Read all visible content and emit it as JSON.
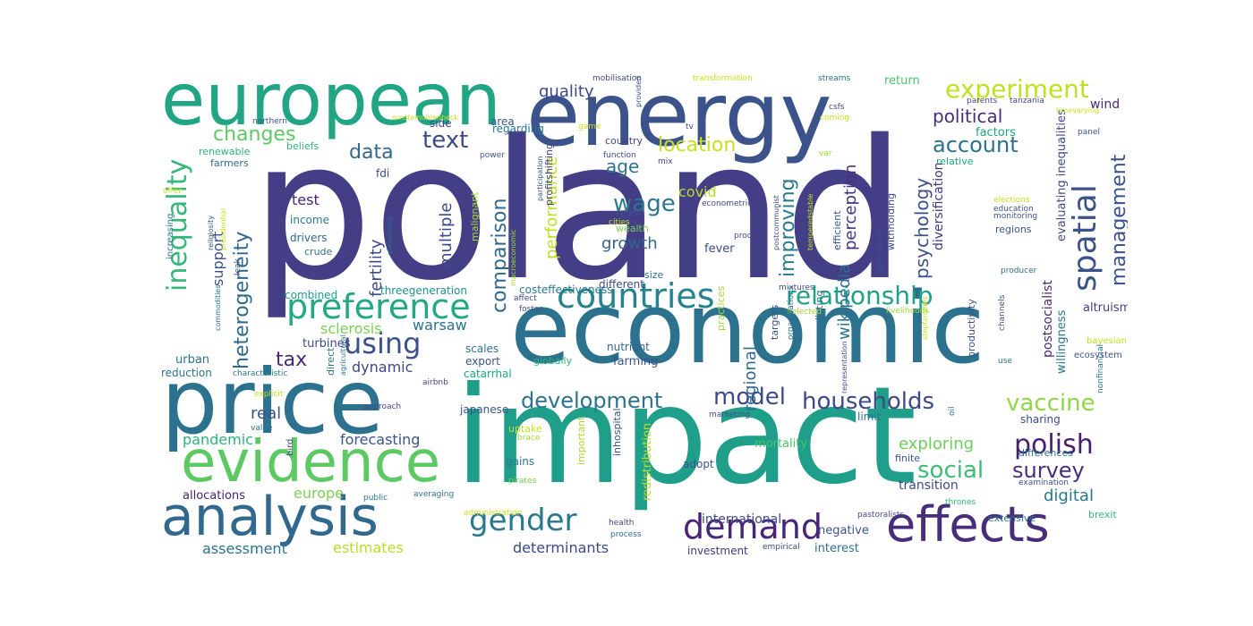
{
  "word_cloud": {
    "words": [
      {
        "text": "poland",
        "color": "#433e85"
      },
      {
        "text": "impact",
        "color": "#1f9e89"
      },
      {
        "text": "economic",
        "color": "#2c728e"
      },
      {
        "text": "price",
        "color": "#2c728e"
      },
      {
        "text": "energy",
        "color": "#3b528b"
      },
      {
        "text": "european",
        "color": "#21a585"
      },
      {
        "text": "evidence",
        "color": "#5ec962"
      },
      {
        "text": "analysis",
        "color": "#31688e"
      },
      {
        "text": "effects",
        "color": "#472d7b"
      },
      {
        "text": "demand",
        "color": "#482677"
      },
      {
        "text": "countries",
        "color": "#26828e"
      },
      {
        "text": "preference",
        "color": "#22a884"
      },
      {
        "text": "inequality",
        "color": "#35b779"
      },
      {
        "text": "spatial",
        "color": "#3b528b"
      },
      {
        "text": "gender",
        "color": "#2a788e"
      },
      {
        "text": "experiment",
        "color": "#c2df23"
      },
      {
        "text": "using",
        "color": "#3b528b"
      },
      {
        "text": "polish",
        "color": "#481f70"
      },
      {
        "text": "relationship",
        "color": "#1fa187"
      },
      {
        "text": "households",
        "color": "#3e4989"
      },
      {
        "text": "vaccine",
        "color": "#8fd744"
      },
      {
        "text": "development",
        "color": "#2c728e"
      },
      {
        "text": "model",
        "color": "#3e4989"
      },
      {
        "text": "social",
        "color": "#3fbc73"
      },
      {
        "text": "survey",
        "color": "#472d7b"
      },
      {
        "text": "heterogeneity",
        "color": "#31688e"
      },
      {
        "text": "comparison",
        "color": "#31688e"
      },
      {
        "text": "management",
        "color": "#3b528b"
      },
      {
        "text": "text",
        "color": "#3e4989"
      },
      {
        "text": "account",
        "color": "#2c728e"
      },
      {
        "text": "location",
        "color": "#c8e020"
      },
      {
        "text": "wage",
        "color": "#2a788e"
      },
      {
        "text": "changes",
        "color": "#5ec962"
      },
      {
        "text": "improving",
        "color": "#2a788e"
      },
      {
        "text": "psychology",
        "color": "#3b528b"
      },
      {
        "text": "data",
        "color": "#31688e"
      },
      {
        "text": "tax",
        "color": "#482878"
      },
      {
        "text": "political",
        "color": "#472d7b"
      },
      {
        "text": "quality",
        "color": "#3e4989"
      },
      {
        "text": "age",
        "color": "#2c728e"
      },
      {
        "text": "performance",
        "color": "#bddf26"
      },
      {
        "text": "multiple",
        "color": "#3e4989"
      },
      {
        "text": "wikipedia",
        "color": "#2c728e"
      },
      {
        "text": "exploring",
        "color": "#6ccd5a"
      },
      {
        "text": "perception",
        "color": "#46337e"
      },
      {
        "text": "digital",
        "color": "#2a788e"
      },
      {
        "text": "forecasting",
        "color": "#3b528b"
      },
      {
        "text": "growth",
        "color": "#33638d"
      },
      {
        "text": "regional",
        "color": "#31688e"
      },
      {
        "text": "warsaw",
        "color": "#2c728e"
      },
      {
        "text": "sclerosis",
        "color": "#7ad151"
      },
      {
        "text": "fertility",
        "color": "#3e4989"
      },
      {
        "text": "pandemic",
        "color": "#2db27d"
      },
      {
        "text": "real",
        "color": "#3b528b"
      },
      {
        "text": "assessment",
        "color": "#2c728e"
      },
      {
        "text": "estimates",
        "color": "#b5de2b"
      },
      {
        "text": "determinants",
        "color": "#3e4989"
      },
      {
        "text": "test",
        "color": "#482677"
      },
      {
        "text": "covid",
        "color": "#b5de2b"
      },
      {
        "text": "dynamic",
        "color": "#3e4989"
      },
      {
        "text": "support",
        "color": "#3b528b"
      },
      {
        "text": "europe",
        "color": "#7ad151"
      },
      {
        "text": "transition",
        "color": "#3e4989"
      },
      {
        "text": "factors",
        "color": "#20a386"
      },
      {
        "text": "evaluating inequalities",
        "color": "#3e4989"
      },
      {
        "text": "diversification",
        "color": "#46337e"
      },
      {
        "text": "postsocialist",
        "color": "#482878"
      },
      {
        "text": "altruism",
        "color": "#433e85"
      },
      {
        "text": "willingness",
        "color": "#2a788e"
      },
      {
        "text": "redistribution",
        "color": "#b8de29"
      },
      {
        "text": "international",
        "color": "#3e4989"
      },
      {
        "text": "investment",
        "color": "#453781"
      },
      {
        "text": "interest",
        "color": "#2c728e"
      },
      {
        "text": "negative",
        "color": "#3b528b"
      },
      {
        "text": "mortality",
        "color": "#4ac16d"
      },
      {
        "text": "return",
        "color": "#4ac16d"
      },
      {
        "text": "wind",
        "color": "#482878"
      },
      {
        "text": "nutrient",
        "color": "#33638d"
      },
      {
        "text": "farming",
        "color": "#3b528b"
      },
      {
        "text": "fever",
        "color": "#3e4989"
      },
      {
        "text": "different",
        "color": "#3e4989"
      },
      {
        "text": "costeffectiveness",
        "color": "#2a788e"
      },
      {
        "text": "allocations",
        "color": "#481f70"
      },
      {
        "text": "urban",
        "color": "#2c728e"
      },
      {
        "text": "reduction",
        "color": "#2c728e"
      },
      {
        "text": "turbines",
        "color": "#3e4989"
      },
      {
        "text": "combined",
        "color": "#1f9e89"
      },
      {
        "text": "income",
        "color": "#2a788e"
      },
      {
        "text": "drivers",
        "color": "#31688e"
      },
      {
        "text": "threegeneration",
        "color": "#21918c"
      },
      {
        "text": "regarding",
        "color": "#2a788e"
      },
      {
        "text": "area",
        "color": "#3b528b"
      },
      {
        "text": "side",
        "color": "#3e4989"
      },
      {
        "text": "beliefs",
        "color": "#2db27d"
      },
      {
        "text": "farmers",
        "color": "#31688e"
      },
      {
        "text": "renewable",
        "color": "#2db27d"
      },
      {
        "text": "fdi",
        "color": "#3e4989"
      },
      {
        "text": "export",
        "color": "#3b528b"
      },
      {
        "text": "scales",
        "color": "#2c728e"
      },
      {
        "text": "catarrhal",
        "color": "#20a386"
      },
      {
        "text": "japanese",
        "color": "#3b528b"
      },
      {
        "text": "gains",
        "color": "#2a788e"
      },
      {
        "text": "adopt",
        "color": "#3b528b"
      },
      {
        "text": "sharing",
        "color": "#3e4989"
      },
      {
        "text": "limit",
        "color": "#2c728e"
      },
      {
        "text": "productivity",
        "color": "#3b528b"
      },
      {
        "text": "targets",
        "color": "#3b528b"
      },
      {
        "text": "predicting",
        "color": "#2c728e"
      },
      {
        "text": "practices",
        "color": "#a0da39"
      },
      {
        "text": "efficient",
        "color": "#3b528b"
      },
      {
        "text": "withholding",
        "color": "#3e4989"
      },
      {
        "text": "relative",
        "color": "#20a386"
      },
      {
        "text": "regions",
        "color": "#3b528b"
      },
      {
        "text": "profitshifting",
        "color": "#3e4989"
      },
      {
        "text": "malignant",
        "color": "#a8db34"
      },
      {
        "text": "wealth",
        "color": "#7ad151"
      },
      {
        "text": "past",
        "color": "#3b528b"
      },
      {
        "text": "size",
        "color": "#2c728e"
      },
      {
        "text": "country",
        "color": "#3e4989"
      },
      {
        "text": "globally",
        "color": "#2db27d"
      },
      {
        "text": "direct",
        "color": "#2a788e"
      },
      {
        "text": "brexit",
        "color": "#35b779"
      },
      {
        "text": "extensive",
        "color": "#2c728e"
      },
      {
        "text": "finite",
        "color": "#3b528b"
      },
      {
        "text": "differences",
        "color": "#2c728e"
      },
      {
        "text": "uptake",
        "color": "#c8e020"
      },
      {
        "text": "inhospital",
        "color": "#3b528b"
      },
      {
        "text": "important",
        "color": "#a8db34"
      },
      {
        "text": "crude",
        "color": "#2c728e"
      },
      {
        "text": "increasing",
        "color": "#2c728e"
      },
      {
        "text": "bird",
        "color": "#3e4989"
      },
      {
        "text": "ecosystem",
        "color": "#3b528b"
      },
      {
        "text": "bayesian",
        "color": "#c2df23"
      },
      {
        "text": "nonfinancial",
        "color": "#2c728e"
      },
      {
        "text": "examination",
        "color": "#3b528b"
      },
      {
        "text": "producer",
        "color": "#2c728e"
      },
      {
        "text": "monitoring",
        "color": "#3b528b"
      },
      {
        "text": "education",
        "color": "#3b528b"
      },
      {
        "text": "elections",
        "color": "#c8e020"
      },
      {
        "text": "mixtures",
        "color": "#3e4989"
      },
      {
        "text": "livelihoods",
        "color": "#a0da39"
      },
      {
        "text": "selected",
        "color": "#a0da39"
      },
      {
        "text": "channels",
        "color": "#3b528b"
      },
      {
        "text": "use",
        "color": "#2c728e"
      },
      {
        "text": "oil",
        "color": "#2c728e"
      },
      {
        "text": "pastoralists",
        "color": "#3e4989"
      },
      {
        "text": "thrones",
        "color": "#2db27d"
      },
      {
        "text": "marketing",
        "color": "#3b528b"
      },
      {
        "text": "organisations",
        "color": "#2c728e"
      },
      {
        "text": "empirical",
        "color": "#3e4989"
      },
      {
        "text": "process",
        "color": "#2c728e"
      },
      {
        "text": "health",
        "color": "#3e4989"
      },
      {
        "text": "pirates",
        "color": "#7ad151"
      },
      {
        "text": "brace",
        "color": "#a0da39"
      },
      {
        "text": "administration",
        "color": "#c8e020"
      },
      {
        "text": "averaging",
        "color": "#2c728e"
      },
      {
        "text": "public",
        "color": "#2a788e"
      },
      {
        "text": "approach",
        "color": "#3e4989"
      },
      {
        "text": "airbnb",
        "color": "#3e4989"
      },
      {
        "text": "explicit",
        "color": "#c8e020"
      },
      {
        "text": "value",
        "color": "#2c728e"
      },
      {
        "text": "characteristic",
        "color": "#2a788e"
      },
      {
        "text": "agricultural",
        "color": "#2a788e"
      },
      {
        "text": "affect",
        "color": "#3e4989"
      },
      {
        "text": "foster",
        "color": "#3b528b"
      },
      {
        "text": "representation",
        "color": "#3b528b"
      },
      {
        "text": "stepfamilies",
        "color": "#c8e020"
      },
      {
        "text": "postcommunist",
        "color": "#3e4989"
      },
      {
        "text": "product",
        "color": "#3e4989"
      },
      {
        "text": "cities",
        "color": "#c8e020"
      },
      {
        "text": "econometrics",
        "color": "#3e4989"
      },
      {
        "text": "macroeconomic",
        "color": "#a0da39"
      },
      {
        "text": "participation",
        "color": "#3b528b"
      },
      {
        "text": "temperedstable",
        "color": "#c8e020"
      },
      {
        "text": "opportunities",
        "color": "#3b528b"
      },
      {
        "text": "var",
        "color": "#a0da39"
      },
      {
        "text": "mix",
        "color": "#3e4989"
      },
      {
        "text": "function",
        "color": "#3e4989"
      },
      {
        "text": "power",
        "color": "#3b528b"
      },
      {
        "text": "leak",
        "color": "#3b528b"
      },
      {
        "text": "viewership",
        "color": "#2c728e"
      },
      {
        "text": "commodities",
        "color": "#2c728e"
      },
      {
        "text": "offer",
        "color": "#c8e020"
      },
      {
        "text": "religiosity",
        "color": "#3b528b"
      },
      {
        "text": "presidential",
        "color": "#c8e020"
      },
      {
        "text": "mobilisation",
        "color": "#3e4989"
      },
      {
        "text": "provided",
        "color": "#3b528b"
      },
      {
        "text": "transformation",
        "color": "#c8e020"
      },
      {
        "text": "streams",
        "color": "#2c728e"
      },
      {
        "text": "parents",
        "color": "#3e4989"
      },
      {
        "text": "tanzania",
        "color": "#3e4989"
      },
      {
        "text": "timevarying",
        "color": "#c8e020"
      },
      {
        "text": "panel",
        "color": "#3b528b"
      },
      {
        "text": "coming",
        "color": "#c8e020"
      },
      {
        "text": "csfs",
        "color": "#3e4989"
      },
      {
        "text": "tv",
        "color": "#3e4989"
      },
      {
        "text": "game",
        "color": "#c8e020"
      },
      {
        "text": "ornsteinuhlenbeck",
        "color": "#c8e020"
      },
      {
        "text": "northern",
        "color": "#3b528b"
      }
    ]
  }
}
